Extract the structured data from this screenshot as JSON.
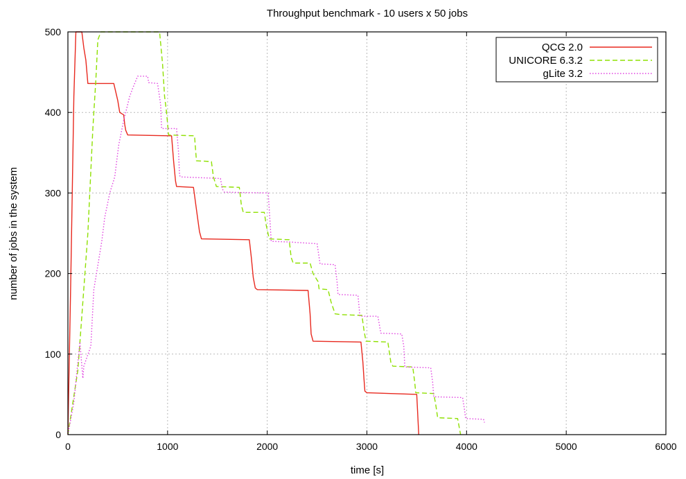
{
  "chart_data": {
    "type": "line",
    "title": "Throughput benchmark - 10 users x 50 jobs",
    "xlabel": "time [s]",
    "ylabel": "number of jobs in the system",
    "xlim": [
      0,
      6000
    ],
    "ylim": [
      0,
      500
    ],
    "x_ticks": [
      0,
      1000,
      2000,
      3000,
      4000,
      5000,
      6000
    ],
    "y_ticks": [
      0,
      100,
      200,
      300,
      400,
      500
    ],
    "grid": true,
    "legend_position": "top-right",
    "series": [
      {
        "name": "QCG 2.0",
        "color": "#e8281e",
        "dash": "solid",
        "points": [
          [
            0,
            0
          ],
          [
            30,
            200
          ],
          [
            60,
            420
          ],
          [
            80,
            500
          ],
          [
            140,
            500
          ],
          [
            160,
            480
          ],
          [
            180,
            465
          ],
          [
            200,
            436
          ],
          [
            460,
            436
          ],
          [
            500,
            415
          ],
          [
            520,
            400
          ],
          [
            560,
            397
          ],
          [
            570,
            385
          ],
          [
            580,
            378
          ],
          [
            600,
            372
          ],
          [
            1040,
            371
          ],
          [
            1060,
            340
          ],
          [
            1080,
            315
          ],
          [
            1090,
            308
          ],
          [
            1260,
            307
          ],
          [
            1300,
            270
          ],
          [
            1320,
            252
          ],
          [
            1340,
            243
          ],
          [
            1820,
            242
          ],
          [
            1840,
            220
          ],
          [
            1860,
            195
          ],
          [
            1880,
            182
          ],
          [
            1900,
            180
          ],
          [
            2410,
            179
          ],
          [
            2430,
            150
          ],
          [
            2440,
            125
          ],
          [
            2460,
            116
          ],
          [
            2940,
            115
          ],
          [
            2960,
            90
          ],
          [
            2970,
            70
          ],
          [
            2980,
            54
          ],
          [
            3000,
            52
          ],
          [
            3500,
            50
          ],
          [
            3520,
            0
          ]
        ]
      },
      {
        "name": "UNICORE 6.3.2",
        "color": "#8ee000",
        "dash": "dashed",
        "points": [
          [
            0,
            0
          ],
          [
            100,
            80
          ],
          [
            200,
            250
          ],
          [
            250,
            380
          ],
          [
            280,
            440
          ],
          [
            300,
            490
          ],
          [
            330,
            500
          ],
          [
            920,
            500
          ],
          [
            950,
            460
          ],
          [
            970,
            420
          ],
          [
            990,
            400
          ],
          [
            1010,
            372
          ],
          [
            1270,
            371
          ],
          [
            1290,
            340
          ],
          [
            1440,
            339
          ],
          [
            1460,
            320
          ],
          [
            1490,
            308
          ],
          [
            1720,
            307
          ],
          [
            1740,
            285
          ],
          [
            1760,
            276
          ],
          [
            1970,
            276
          ],
          [
            1990,
            260
          ],
          [
            2020,
            243
          ],
          [
            2220,
            242
          ],
          [
            2240,
            220
          ],
          [
            2260,
            213
          ],
          [
            2430,
            213
          ],
          [
            2460,
            200
          ],
          [
            2510,
            190
          ],
          [
            2520,
            181
          ],
          [
            2610,
            180
          ],
          [
            2640,
            165
          ],
          [
            2680,
            150
          ],
          [
            2740,
            149
          ],
          [
            2950,
            148
          ],
          [
            2970,
            130
          ],
          [
            2990,
            116
          ],
          [
            3210,
            115
          ],
          [
            3240,
            90
          ],
          [
            3260,
            85
          ],
          [
            3460,
            84
          ],
          [
            3480,
            65
          ],
          [
            3490,
            52
          ],
          [
            3670,
            51
          ],
          [
            3690,
            38
          ],
          [
            3710,
            21
          ],
          [
            3910,
            20
          ],
          [
            3940,
            0
          ]
        ]
      },
      {
        "name": "gLite 3.2",
        "color": "#e040e0",
        "dash": "dotted",
        "points": [
          [
            0,
            0
          ],
          [
            60,
            40
          ],
          [
            120,
            115
          ],
          [
            150,
            70
          ],
          [
            160,
            85
          ],
          [
            230,
            110
          ],
          [
            260,
            180
          ],
          [
            340,
            240
          ],
          [
            370,
            270
          ],
          [
            420,
            300
          ],
          [
            470,
            320
          ],
          [
            510,
            360
          ],
          [
            560,
            390
          ],
          [
            620,
            420
          ],
          [
            650,
            430
          ],
          [
            700,
            445
          ],
          [
            800,
            445
          ],
          [
            810,
            437
          ],
          [
            900,
            436
          ],
          [
            930,
            410
          ],
          [
            940,
            380
          ],
          [
            1090,
            380
          ],
          [
            1110,
            350
          ],
          [
            1120,
            322
          ],
          [
            1130,
            320
          ],
          [
            1530,
            318
          ],
          [
            1550,
            305
          ],
          [
            1570,
            301
          ],
          [
            2010,
            300
          ],
          [
            2030,
            260
          ],
          [
            2040,
            240
          ],
          [
            2250,
            239
          ],
          [
            2500,
            237
          ],
          [
            2530,
            212
          ],
          [
            2680,
            211
          ],
          [
            2700,
            190
          ],
          [
            2710,
            174
          ],
          [
            2910,
            173
          ],
          [
            2930,
            147
          ],
          [
            3110,
            147
          ],
          [
            3140,
            126
          ],
          [
            3350,
            125
          ],
          [
            3370,
            110
          ],
          [
            3380,
            84
          ],
          [
            3640,
            83
          ],
          [
            3660,
            65
          ],
          [
            3670,
            47
          ],
          [
            3960,
            46
          ],
          [
            3980,
            30
          ],
          [
            3990,
            20
          ],
          [
            4170,
            19
          ],
          [
            4180,
            15
          ]
        ]
      }
    ]
  }
}
